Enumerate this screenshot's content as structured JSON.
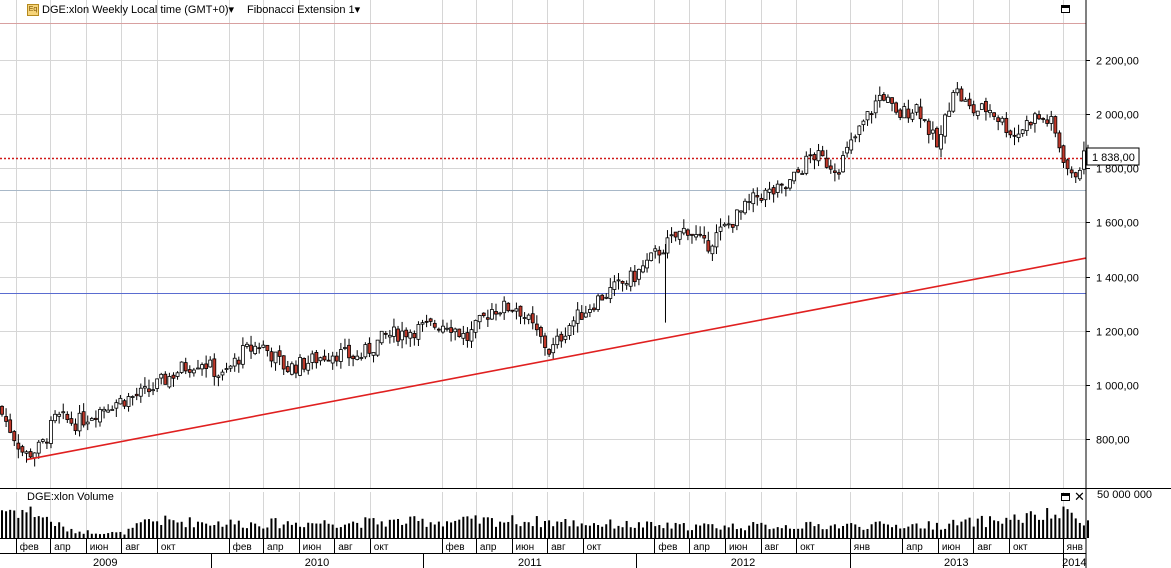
{
  "header": {
    "instrument_label": "DGE:xlon Weekly Local time (GMT+0)",
    "indicator_label": "Fibonacci Extension 1",
    "dropdown_glyph": "▾"
  },
  "volume_pane": {
    "label": "DGE:xlon Volume",
    "scale_label": "50 000 000",
    "close_glyph": "✕"
  },
  "colors": {
    "grid": "#d6d6d6",
    "trendline": "#e02020",
    "price_line": "#d01818",
    "fib_top": "#d8a0a0",
    "fib_mid": "#a8b8c8",
    "fib_blue": "#5a6cd0",
    "candle": "#000000",
    "candle_down": "#c0392b"
  },
  "chart_data": {
    "type": "candlestick",
    "title": "DGE:xlon Weekly Local time (GMT+0)",
    "price_label": "1 838,00",
    "current_price": 1838,
    "y_ticks": [
      {
        "value": 800,
        "label": "800,00"
      },
      {
        "value": 1000,
        "label": "1 000,00"
      },
      {
        "value": 1200,
        "label": "1 200,00"
      },
      {
        "value": 1400,
        "label": "1 400,00"
      },
      {
        "value": 1600,
        "label": "1 600,00"
      },
      {
        "value": 1800,
        "label": "1 800,00"
      },
      {
        "value": 2000,
        "label": "2 000,00"
      },
      {
        "value": 2200,
        "label": "2 200,00"
      }
    ],
    "ylim": [
      620,
      2420
    ],
    "x_start": "2009-01-05",
    "x_end": "2014-02-10",
    "x_months": [
      {
        "date": "2009-02-01",
        "label": "фев"
      },
      {
        "date": "2009-04-01",
        "label": "апр"
      },
      {
        "date": "2009-06-01",
        "label": "июн"
      },
      {
        "date": "2009-08-01",
        "label": "авг"
      },
      {
        "date": "2009-10-01",
        "label": "окт"
      },
      {
        "date": "2010-02-01",
        "label": "фев"
      },
      {
        "date": "2010-04-01",
        "label": "апр"
      },
      {
        "date": "2010-06-01",
        "label": "июн"
      },
      {
        "date": "2010-08-01",
        "label": "авг"
      },
      {
        "date": "2010-10-01",
        "label": "окт"
      },
      {
        "date": "2011-02-01",
        "label": "фев"
      },
      {
        "date": "2011-04-01",
        "label": "апр"
      },
      {
        "date": "2011-06-01",
        "label": "июн"
      },
      {
        "date": "2011-08-01",
        "label": "авг"
      },
      {
        "date": "2011-10-01",
        "label": "окт"
      },
      {
        "date": "2012-02-01",
        "label": "фев"
      },
      {
        "date": "2012-04-01",
        "label": "апр"
      },
      {
        "date": "2012-06-01",
        "label": "июн"
      },
      {
        "date": "2012-08-01",
        "label": "авг"
      },
      {
        "date": "2012-10-01",
        "label": "окт"
      },
      {
        "date": "2013-01-01",
        "label": "янв"
      },
      {
        "date": "2013-04-01",
        "label": "апр"
      },
      {
        "date": "2013-06-01",
        "label": "июн"
      },
      {
        "date": "2013-08-01",
        "label": "авг"
      },
      {
        "date": "2013-10-01",
        "label": "окт"
      },
      {
        "date": "2014-01-01",
        "label": "янв"
      }
    ],
    "x_years": [
      {
        "label": "2009",
        "from": "2009-01-05",
        "to": "2010-01-01"
      },
      {
        "label": "2010",
        "from": "2010-01-01",
        "to": "2011-01-01"
      },
      {
        "label": "2011",
        "from": "2011-01-01",
        "to": "2012-01-01"
      },
      {
        "label": "2012",
        "from": "2012-01-01",
        "to": "2013-01-01"
      },
      {
        "label": "2013",
        "from": "2013-01-01",
        "to": "2014-01-01"
      },
      {
        "label": "2014",
        "from": "2014-01-01",
        "to": "2014-02-10"
      }
    ],
    "trendline": {
      "from": {
        "date": "2009-02-20",
        "value": 725
      },
      "to": {
        "date": "2014-02-10",
        "value": 1468
      }
    },
    "horizontal_lines": [
      {
        "name": "fib-level-top",
        "value": 2335,
        "color_key": "fib_top",
        "style": "solid"
      },
      {
        "name": "current-price-line",
        "value": 1838,
        "color_key": "price_line",
        "style": "dotted"
      },
      {
        "name": "fib-level-mid",
        "value": 1720,
        "color_key": "fib_mid",
        "style": "solid"
      },
      {
        "name": "fib-level-blue",
        "value": 1340,
        "color_key": "fib_blue",
        "style": "solid"
      }
    ],
    "spike": {
      "date": "2012-02-20",
      "low": 1230,
      "high": 1520
    },
    "price_path": [
      {
        "date": "2009-01-05",
        "value": 920
      },
      {
        "date": "2009-02-20",
        "value": 740
      },
      {
        "date": "2009-03-20",
        "value": 770
      },
      {
        "date": "2009-04-15",
        "value": 880
      },
      {
        "date": "2009-05-20",
        "value": 860
      },
      {
        "date": "2009-07-15",
        "value": 930
      },
      {
        "date": "2009-09-15",
        "value": 970
      },
      {
        "date": "2009-11-15",
        "value": 1060
      },
      {
        "date": "2009-12-20",
        "value": 1090
      },
      {
        "date": "2010-01-25",
        "value": 1030
      },
      {
        "date": "2010-03-01",
        "value": 1120
      },
      {
        "date": "2010-04-01",
        "value": 1150
      },
      {
        "date": "2010-05-15",
        "value": 1060
      },
      {
        "date": "2010-06-15",
        "value": 1080
      },
      {
        "date": "2010-08-01",
        "value": 1120
      },
      {
        "date": "2010-09-15",
        "value": 1100
      },
      {
        "date": "2010-11-01",
        "value": 1180
      },
      {
        "date": "2011-01-01",
        "value": 1210
      },
      {
        "date": "2011-02-15",
        "value": 1230
      },
      {
        "date": "2011-03-20",
        "value": 1170
      },
      {
        "date": "2011-05-01",
        "value": 1280
      },
      {
        "date": "2011-06-15",
        "value": 1290
      },
      {
        "date": "2011-08-10",
        "value": 1120
      },
      {
        "date": "2011-09-10",
        "value": 1220
      },
      {
        "date": "2011-11-01",
        "value": 1320
      },
      {
        "date": "2012-01-01",
        "value": 1400
      },
      {
        "date": "2012-02-15",
        "value": 1500
      },
      {
        "date": "2012-04-01",
        "value": 1580
      },
      {
        "date": "2012-05-01",
        "value": 1510
      },
      {
        "date": "2012-06-15",
        "value": 1600
      },
      {
        "date": "2012-08-01",
        "value": 1700
      },
      {
        "date": "2012-09-15",
        "value": 1720
      },
      {
        "date": "2012-11-01",
        "value": 1850
      },
      {
        "date": "2012-12-15",
        "value": 1800
      },
      {
        "date": "2013-02-01",
        "value": 1980
      },
      {
        "date": "2013-03-01",
        "value": 2080
      },
      {
        "date": "2013-03-25",
        "value": 1990
      },
      {
        "date": "2013-05-01",
        "value": 2030
      },
      {
        "date": "2013-06-05",
        "value": 1870
      },
      {
        "date": "2013-07-01",
        "value": 2100
      },
      {
        "date": "2013-08-01",
        "value": 2010
      },
      {
        "date": "2013-09-01",
        "value": 2020
      },
      {
        "date": "2013-10-15",
        "value": 1920
      },
      {
        "date": "2013-11-15",
        "value": 1990
      },
      {
        "date": "2013-12-15",
        "value": 1970
      },
      {
        "date": "2014-01-20",
        "value": 1760
      },
      {
        "date": "2014-02-10",
        "value": 1838
      }
    ],
    "volume_path": [
      {
        "date": "2009-01-05",
        "value": 50000000
      },
      {
        "date": "2009-03-01",
        "value": 45000000
      },
      {
        "date": "2009-05-01",
        "value": 12000000
      },
      {
        "date": "2009-08-01",
        "value": 8000000
      },
      {
        "date": "2009-09-15",
        "value": 30000000
      },
      {
        "date": "2010-03-01",
        "value": 25000000
      },
      {
        "date": "2011-06-01",
        "value": 30000000
      },
      {
        "date": "2012-03-01",
        "value": 20000000
      },
      {
        "date": "2013-06-01",
        "value": 22000000
      },
      {
        "date": "2014-01-10",
        "value": 42000000
      },
      {
        "date": "2014-02-10",
        "value": 30000000
      }
    ]
  }
}
